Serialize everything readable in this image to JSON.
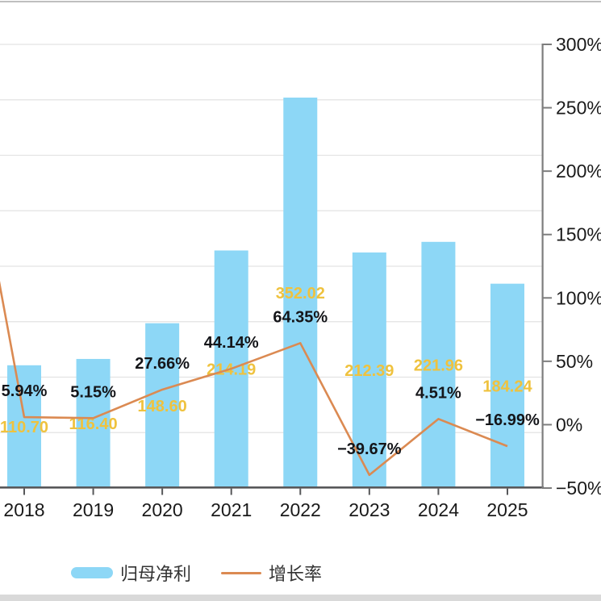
{
  "chart_data": {
    "type": "bar+line",
    "categories": [
      "2018",
      "2019",
      "2020",
      "2021",
      "2022",
      "2023",
      "2024",
      "2025"
    ],
    "series": [
      {
        "name": "归母净利",
        "type": "bar",
        "axis": "left-hidden",
        "values": [
          110.7,
          116.4,
          148.6,
          214.19,
          352.02,
          212.39,
          221.96,
          184.24
        ],
        "labels": [
          "110.70",
          "116.40",
          "148.60",
          "214.19",
          "352.02",
          "212.39",
          "221.96",
          "184.24"
        ],
        "color": "#8DD7F6",
        "label_color": "#EFC23E"
      },
      {
        "name": "增长率",
        "type": "line",
        "axis": "right",
        "values": [
          5.94,
          5.15,
          27.66,
          44.14,
          64.35,
          -39.67,
          4.51,
          -16.99
        ],
        "labels": [
          "5.94%",
          "5.15%",
          "27.66%",
          "44.14%",
          "64.35%",
          "−39.67%",
          "4.51%",
          "−16.99%"
        ],
        "clipped_prev_point_pct": 300,
        "color": "#DB8A52",
        "label_color": "#141519"
      }
    ],
    "left_axis": {
      "min": 0,
      "max": 400,
      "splits": 8,
      "labels_visible": false
    },
    "right_axis": {
      "min": -50,
      "max": 300,
      "step": 50,
      "tick_labels": [
        "300%",
        "250%",
        "200%",
        "150%",
        "100%",
        "50%",
        "0%",
        "−50%"
      ]
    },
    "grid": {
      "horizontal_lines": true,
      "vertical_lines": false
    },
    "legend_position": "bottom-left",
    "title": ""
  },
  "legend": {
    "items": [
      {
        "label": "归母净利",
        "marker": "bar-swatch",
        "color": "#8DD7F6"
      },
      {
        "label": "增长率",
        "marker": "line",
        "color": "#DB8A52"
      }
    ]
  },
  "colors": {
    "background": "#ffffff",
    "gridline": "#e3e3e3",
    "x_axis": "#57585a",
    "right_axis": "#7d7d7d",
    "axis_label": "#1a1a1a",
    "legend_text": "#333333",
    "top_divider": "#bfbfbf",
    "bottom_band": "#d9d9d9"
  }
}
